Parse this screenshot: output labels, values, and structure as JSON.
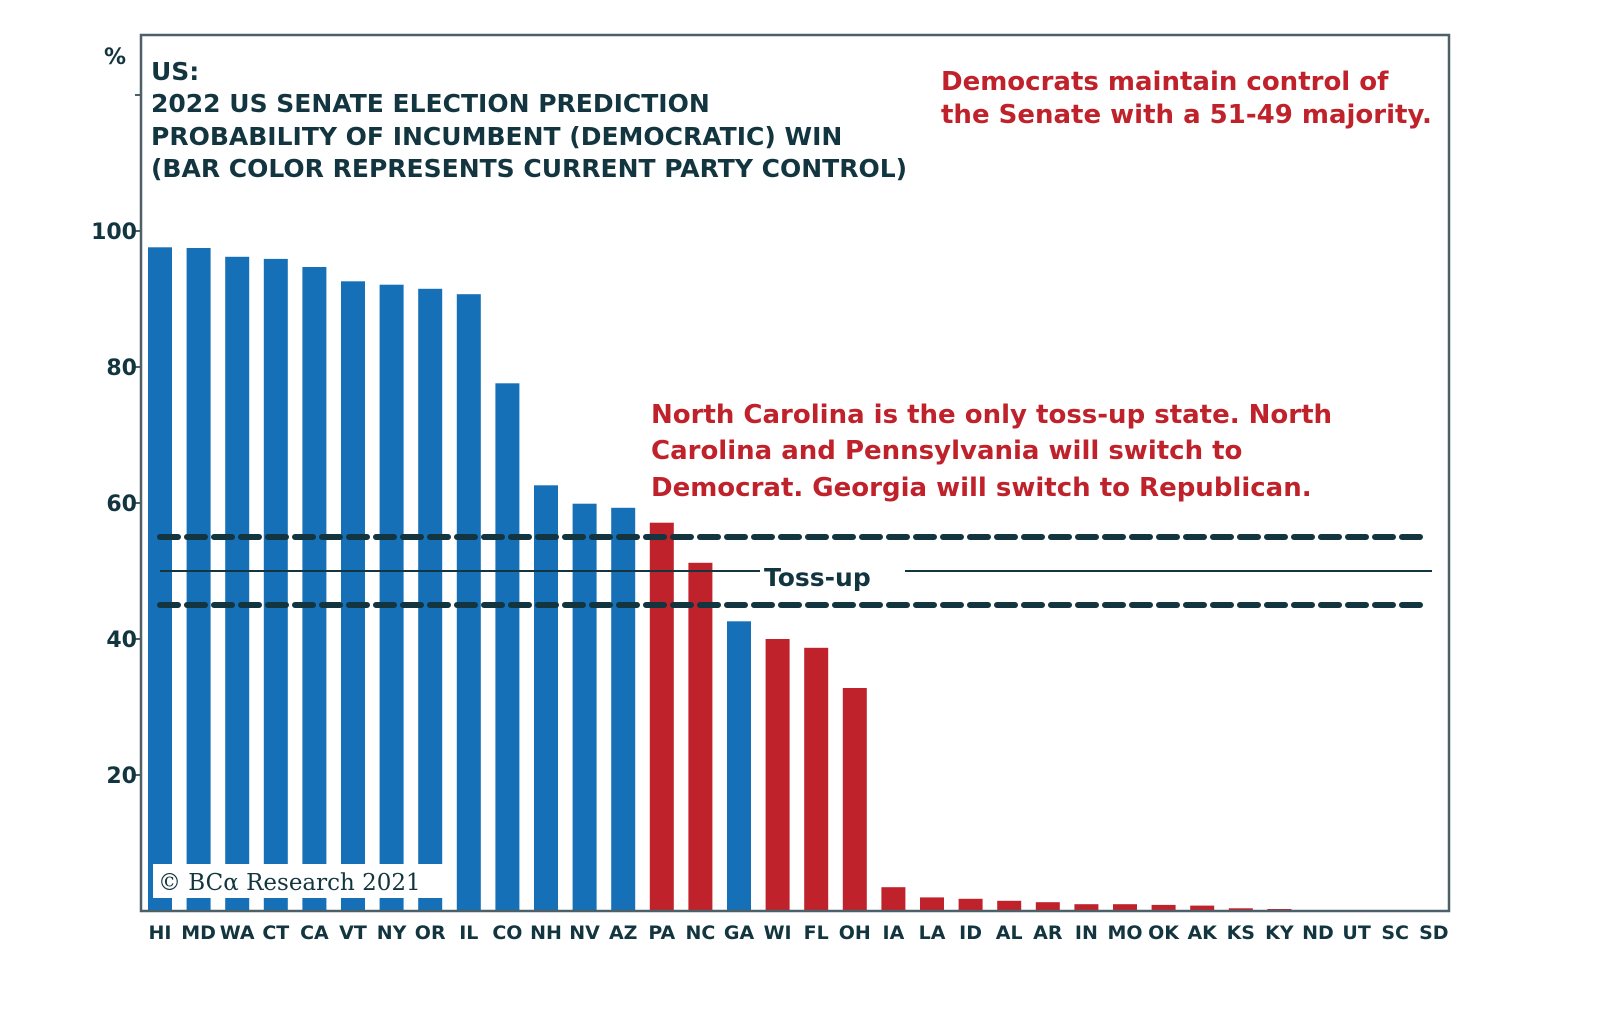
{
  "chart_data": {
    "type": "bar",
    "ylabel_unit": "%",
    "title_lines": [
      "US:",
      "2022 US SENATE ELECTION PREDICTION",
      "PROBABILITY OF INCUMBENT (DEMOCRATIC) WIN",
      "(BAR COLOR REPRESENTS CURRENT PARTY CONTROL)"
    ],
    "ylim": [
      0,
      129
    ],
    "yticks": [
      {
        "value": 20,
        "label": "20"
      },
      {
        "value": 40,
        "label": "40"
      },
      {
        "value": 60,
        "label": "60"
      },
      {
        "value": 80,
        "label": "80"
      },
      {
        "value": 100,
        "label": "100"
      },
      {
        "value": 120,
        "label": ""
      }
    ],
    "categories": [
      "HI",
      "MD",
      "WA",
      "CT",
      "CA",
      "VT",
      "NY",
      "OR",
      "IL",
      "CO",
      "NH",
      "NV",
      "AZ",
      "PA",
      "NC",
      "GA",
      "WI",
      "FL",
      "OH",
      "IA",
      "LA",
      "ID",
      "AL",
      "AR",
      "IN",
      "MO",
      "OK",
      "AK",
      "KS",
      "KY",
      "ND",
      "UT",
      "SC",
      "SD"
    ],
    "values": [
      97.6,
      97.5,
      96.2,
      95.9,
      94.7,
      92.6,
      92.1,
      91.5,
      90.7,
      77.6,
      62.6,
      59.9,
      59.3,
      57.1,
      51.2,
      42.6,
      40.0,
      38.7,
      32.8,
      3.5,
      2.0,
      1.8,
      1.5,
      1.3,
      1.0,
      1.0,
      0.9,
      0.8,
      0.4,
      0.3,
      0.0,
      0.0,
      0.0,
      0.0
    ],
    "party": [
      "D",
      "D",
      "D",
      "D",
      "D",
      "D",
      "D",
      "D",
      "D",
      "D",
      "D",
      "D",
      "D",
      "R",
      "R",
      "D",
      "R",
      "R",
      "R",
      "R",
      "R",
      "R",
      "R",
      "R",
      "R",
      "R",
      "R",
      "R",
      "R",
      "R",
      "R",
      "R",
      "R",
      "R"
    ],
    "colors": {
      "D": "#1570b8",
      "R": "#c0222b",
      "ink": "#12353f",
      "annotation": "#c0222b"
    },
    "reference_lines": [
      {
        "value": 55,
        "style": "dashed"
      },
      {
        "value": 50,
        "style": "solid",
        "label": "Toss-up"
      },
      {
        "value": 45,
        "style": "dashed"
      }
    ],
    "annotations": {
      "top_right": [
        "Democrats maintain control of",
        "the Senate with a 51-49 majority."
      ],
      "middle": [
        "North Carolina is the only toss-up state. North",
        "Carolina and Pennsylvania will switch to",
        "Democrat. Georgia will switch to Republican."
      ]
    },
    "grid": false,
    "legend": "none"
  },
  "footer": {
    "copyright": "© BCα Research 2021"
  }
}
